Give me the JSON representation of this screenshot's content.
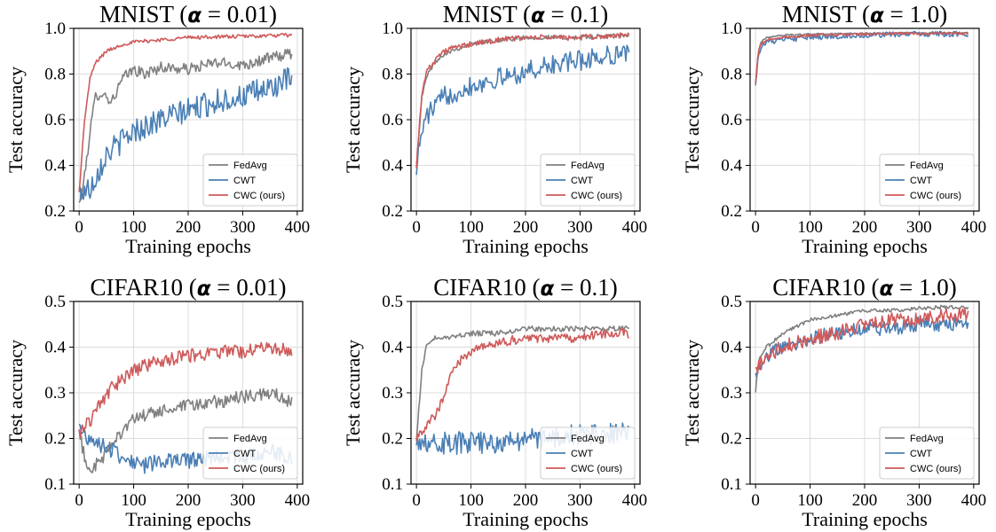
{
  "chart_data": [
    {
      "type": "line",
      "dataset": "MNIST",
      "alpha": "0.01",
      "title_prefix": "MNIST (",
      "title_alpha": "α",
      "title_suffix": " = 0.01)",
      "xlabel": "Training epochs",
      "ylabel": "Test accuracy",
      "xlim": [
        -10,
        410
      ],
      "ylim": [
        0.2,
        1.0
      ],
      "xticks": [
        0,
        100,
        200,
        300,
        400
      ],
      "yticks": [
        0.2,
        0.4,
        0.6,
        0.8,
        1.0
      ],
      "grid": true,
      "legend_position": "lower-right",
      "series": [
        {
          "name": "FedAvg",
          "color": "#808080",
          "noise": 0.025,
          "x": [
            0,
            10,
            20,
            30,
            40,
            60,
            80,
            100,
            120,
            150,
            200,
            250,
            300,
            350,
            390
          ],
          "y": [
            0.23,
            0.35,
            0.55,
            0.7,
            0.72,
            0.68,
            0.78,
            0.82,
            0.8,
            0.83,
            0.82,
            0.85,
            0.84,
            0.87,
            0.89
          ]
        },
        {
          "name": "CWT",
          "color": "#4a7fb5",
          "noise": 0.055,
          "x": [
            0,
            20,
            50,
            100,
            150,
            200,
            250,
            300,
            350,
            390
          ],
          "y": [
            0.28,
            0.3,
            0.45,
            0.55,
            0.6,
            0.64,
            0.68,
            0.7,
            0.74,
            0.78
          ]
        },
        {
          "name": "CWC (ours)",
          "color": "#cf5a5a",
          "noise": 0.008,
          "x": [
            0,
            10,
            20,
            30,
            50,
            80,
            100,
            150,
            200,
            300,
            390
          ],
          "y": [
            0.28,
            0.6,
            0.78,
            0.85,
            0.9,
            0.93,
            0.94,
            0.95,
            0.96,
            0.965,
            0.97
          ]
        }
      ]
    },
    {
      "type": "line",
      "dataset": "MNIST",
      "alpha": "0.1",
      "title_prefix": "MNIST (",
      "title_alpha": "α",
      "title_suffix": " = 0.1)",
      "xlabel": "Training epochs",
      "ylabel": "Test accuracy",
      "xlim": [
        -10,
        410
      ],
      "ylim": [
        0.2,
        1.0
      ],
      "xticks": [
        0,
        100,
        200,
        300,
        400
      ],
      "yticks": [
        0.2,
        0.4,
        0.6,
        0.8,
        1.0
      ],
      "grid": true,
      "legend_position": "lower-right",
      "series": [
        {
          "name": "FedAvg",
          "color": "#808080",
          "noise": 0.01,
          "x": [
            0,
            10,
            20,
            40,
            60,
            100,
            150,
            200,
            300,
            390
          ],
          "y": [
            0.4,
            0.7,
            0.8,
            0.87,
            0.9,
            0.93,
            0.95,
            0.96,
            0.96,
            0.97
          ]
        },
        {
          "name": "CWT",
          "color": "#4a7fb5",
          "noise": 0.045,
          "x": [
            0,
            10,
            20,
            50,
            100,
            150,
            200,
            250,
            300,
            350,
            390
          ],
          "y": [
            0.4,
            0.55,
            0.62,
            0.7,
            0.75,
            0.78,
            0.81,
            0.84,
            0.86,
            0.88,
            0.9
          ]
        },
        {
          "name": "CWC (ours)",
          "color": "#cf5a5a",
          "noise": 0.012,
          "x": [
            0,
            10,
            20,
            40,
            60,
            100,
            150,
            200,
            300,
            390
          ],
          "y": [
            0.4,
            0.72,
            0.82,
            0.88,
            0.91,
            0.93,
            0.95,
            0.96,
            0.96,
            0.97
          ]
        }
      ]
    },
    {
      "type": "line",
      "dataset": "MNIST",
      "alpha": "1.0",
      "title_prefix": "MNIST (",
      "title_alpha": "α",
      "title_suffix": " = 1.0)",
      "xlabel": "Training epochs",
      "ylabel": "Test accuracy",
      "xlim": [
        -10,
        410
      ],
      "ylim": [
        0.2,
        1.0
      ],
      "xticks": [
        0,
        100,
        200,
        300,
        400
      ],
      "yticks": [
        0.2,
        0.4,
        0.6,
        0.8,
        1.0
      ],
      "grid": true,
      "legend_position": "lower-right",
      "series": [
        {
          "name": "FedAvg",
          "color": "#808080",
          "noise": 0.003,
          "x": [
            0,
            5,
            10,
            20,
            50,
            100,
            200,
            300,
            390
          ],
          "y": [
            0.75,
            0.9,
            0.94,
            0.96,
            0.97,
            0.975,
            0.978,
            0.98,
            0.98
          ]
        },
        {
          "name": "CWT",
          "color": "#4a7fb5",
          "noise": 0.012,
          "x": [
            0,
            5,
            10,
            20,
            50,
            100,
            200,
            300,
            390
          ],
          "y": [
            0.76,
            0.88,
            0.92,
            0.94,
            0.95,
            0.96,
            0.97,
            0.975,
            0.975
          ]
        },
        {
          "name": "CWC (ours)",
          "color": "#cf5a5a",
          "noise": 0.006,
          "x": [
            0,
            5,
            10,
            20,
            50,
            100,
            200,
            300,
            390
          ],
          "y": [
            0.76,
            0.89,
            0.93,
            0.95,
            0.96,
            0.97,
            0.975,
            0.978,
            0.978
          ]
        }
      ]
    },
    {
      "type": "line",
      "dataset": "CIFAR10",
      "alpha": "0.01",
      "title_prefix": "CIFAR10 (",
      "title_alpha": "α",
      "title_suffix": " = 0.01)",
      "xlabel": "Training epochs",
      "ylabel": "Test accuracy",
      "xlim": [
        -10,
        410
      ],
      "ylim": [
        0.1,
        0.5
      ],
      "xticks": [
        0,
        100,
        200,
        300,
        400
      ],
      "yticks": [
        0.1,
        0.2,
        0.3,
        0.4,
        0.5
      ],
      "grid": true,
      "legend_position": "lower-right",
      "series": [
        {
          "name": "FedAvg",
          "color": "#808080",
          "noise": 0.015,
          "x": [
            0,
            10,
            20,
            40,
            60,
            80,
            100,
            120,
            150,
            200,
            250,
            300,
            350,
            390
          ],
          "y": [
            0.21,
            0.16,
            0.13,
            0.15,
            0.19,
            0.22,
            0.24,
            0.25,
            0.26,
            0.27,
            0.28,
            0.29,
            0.3,
            0.28
          ]
        },
        {
          "name": "CWT",
          "color": "#4a7fb5",
          "noise": 0.018,
          "x": [
            0,
            20,
            50,
            80,
            100,
            120,
            150,
            200,
            250,
            300,
            350,
            390
          ],
          "y": [
            0.22,
            0.2,
            0.18,
            0.16,
            0.15,
            0.14,
            0.15,
            0.15,
            0.16,
            0.16,
            0.17,
            0.16
          ]
        },
        {
          "name": "CWC (ours)",
          "color": "#cf5a5a",
          "noise": 0.015,
          "x": [
            0,
            20,
            40,
            60,
            80,
            100,
            150,
            200,
            250,
            300,
            350,
            390
          ],
          "y": [
            0.21,
            0.24,
            0.28,
            0.31,
            0.33,
            0.35,
            0.37,
            0.38,
            0.39,
            0.39,
            0.4,
            0.39
          ]
        }
      ]
    },
    {
      "type": "line",
      "dataset": "CIFAR10",
      "alpha": "0.1",
      "title_prefix": "CIFAR10 (",
      "title_alpha": "α",
      "title_suffix": " = 0.1)",
      "xlabel": "Training epochs",
      "ylabel": "Test accuracy",
      "xlim": [
        -10,
        410
      ],
      "ylim": [
        0.1,
        0.5
      ],
      "xticks": [
        0,
        100,
        200,
        300,
        400
      ],
      "yticks": [
        0.1,
        0.2,
        0.3,
        0.4,
        0.5
      ],
      "grid": true,
      "legend_position": "lower-right",
      "series": [
        {
          "name": "FedAvg",
          "color": "#808080",
          "noise": 0.006,
          "x": [
            0,
            10,
            20,
            30,
            50,
            100,
            150,
            200,
            250,
            300,
            350,
            390
          ],
          "y": [
            0.2,
            0.35,
            0.41,
            0.42,
            0.42,
            0.43,
            0.43,
            0.44,
            0.44,
            0.44,
            0.44,
            0.44
          ]
        },
        {
          "name": "CWT",
          "color": "#4a7fb5",
          "noise": 0.025,
          "x": [
            0,
            50,
            100,
            150,
            200,
            250,
            300,
            350,
            390
          ],
          "y": [
            0.2,
            0.19,
            0.19,
            0.19,
            0.2,
            0.2,
            0.21,
            0.21,
            0.21
          ]
        },
        {
          "name": "CWC (ours)",
          "color": "#cf5a5a",
          "noise": 0.01,
          "x": [
            0,
            20,
            40,
            60,
            80,
            100,
            150,
            200,
            250,
            300,
            350,
            390
          ],
          "y": [
            0.2,
            0.23,
            0.26,
            0.33,
            0.37,
            0.39,
            0.41,
            0.42,
            0.42,
            0.42,
            0.43,
            0.43
          ]
        }
      ]
    },
    {
      "type": "line",
      "dataset": "CIFAR10",
      "alpha": "1.0",
      "title_prefix": "CIFAR10 (",
      "title_alpha": "α",
      "title_suffix": " = 1.0)",
      "xlabel": "Training epochs",
      "ylabel": "Test accuracy",
      "xlim": [
        -10,
        410
      ],
      "ylim": [
        0.1,
        0.5
      ],
      "xticks": [
        0,
        100,
        200,
        300,
        400
      ],
      "yticks": [
        0.1,
        0.2,
        0.3,
        0.4,
        0.5
      ],
      "grid": true,
      "legend_position": "lower-right",
      "series": [
        {
          "name": "FedAvg",
          "color": "#808080",
          "noise": 0.004,
          "x": [
            0,
            5,
            20,
            50,
            100,
            150,
            200,
            250,
            300,
            350,
            390
          ],
          "y": [
            0.3,
            0.37,
            0.4,
            0.43,
            0.46,
            0.47,
            0.48,
            0.48,
            0.485,
            0.488,
            0.488
          ]
        },
        {
          "name": "CWT",
          "color": "#4a7fb5",
          "noise": 0.016,
          "x": [
            0,
            20,
            50,
            100,
            150,
            200,
            250,
            300,
            350,
            390
          ],
          "y": [
            0.34,
            0.38,
            0.4,
            0.42,
            0.43,
            0.44,
            0.44,
            0.45,
            0.45,
            0.45
          ]
        },
        {
          "name": "CWC (ours)",
          "color": "#cf5a5a",
          "noise": 0.016,
          "x": [
            0,
            20,
            50,
            100,
            150,
            200,
            250,
            300,
            350,
            390
          ],
          "y": [
            0.35,
            0.38,
            0.4,
            0.42,
            0.43,
            0.45,
            0.46,
            0.46,
            0.47,
            0.47
          ]
        }
      ]
    }
  ]
}
